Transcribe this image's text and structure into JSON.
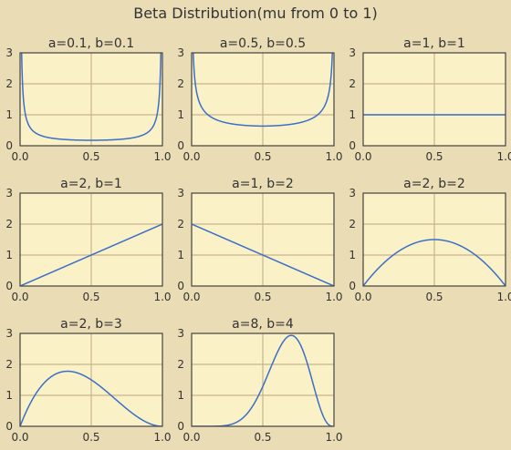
{
  "title": "Beta Distribution(mu from 0 to 1)",
  "colors": {
    "figure_bg": "#eadcb4",
    "axes_bg": "#fbf1c7",
    "grid": "#c9b48c",
    "spine": "#4a4a4a",
    "line": "#3a6fc9",
    "text": "#333333"
  },
  "chart_data": [
    {
      "type": "line",
      "title": "a=0.1, b=0.1",
      "a": 0.1,
      "b": 0.1,
      "xlim": [
        0,
        1
      ],
      "ylim": [
        0,
        3
      ],
      "xticks": [
        "0.0",
        "0.5",
        "1.0"
      ],
      "yticks": [
        "0",
        "1",
        "2",
        "3"
      ],
      "grid": true,
      "x": [
        0,
        0.01,
        0.02,
        0.05,
        0.1,
        0.2,
        0.3,
        0.4,
        0.5,
        0.6,
        0.7,
        0.8,
        0.9,
        0.95,
        0.98,
        0.99,
        1
      ],
      "y": [
        null,
        3.0,
        1.77,
        0.87,
        0.51,
        0.29,
        0.22,
        0.18,
        0.17,
        0.18,
        0.22,
        0.29,
        0.51,
        0.87,
        1.77,
        3.0,
        null
      ]
    },
    {
      "type": "line",
      "title": "a=0.5, b=0.5",
      "a": 0.5,
      "b": 0.5,
      "xlim": [
        0,
        1
      ],
      "ylim": [
        0,
        3
      ],
      "xticks": [
        "0.0",
        "0.5",
        "1.0"
      ],
      "yticks": [
        "0",
        "1",
        "2",
        "3"
      ],
      "grid": true,
      "x": [
        0,
        0.01,
        0.02,
        0.05,
        0.1,
        0.2,
        0.3,
        0.4,
        0.5,
        0.6,
        0.7,
        0.8,
        0.9,
        0.95,
        0.98,
        0.99,
        1
      ],
      "y": [
        null,
        3.2,
        2.27,
        1.46,
        1.06,
        0.8,
        0.69,
        0.65,
        0.64,
        0.65,
        0.69,
        0.8,
        1.06,
        1.46,
        2.27,
        3.2,
        null
      ]
    },
    {
      "type": "line",
      "title": "a=1, b=1",
      "a": 1,
      "b": 1,
      "xlim": [
        0,
        1
      ],
      "ylim": [
        0,
        3
      ],
      "xticks": [
        "0.0",
        "0.5",
        "1.0"
      ],
      "yticks": [
        "0",
        "1",
        "2",
        "3"
      ],
      "grid": true,
      "x": [
        0,
        0.5,
        1
      ],
      "y": [
        1,
        1,
        1
      ]
    },
    {
      "type": "line",
      "title": "a=2, b=1",
      "a": 2,
      "b": 1,
      "xlim": [
        0,
        1
      ],
      "ylim": [
        0,
        3
      ],
      "xticks": [
        "0.0",
        "0.5",
        "1.0"
      ],
      "yticks": [
        "0",
        "1",
        "2",
        "3"
      ],
      "grid": true,
      "x": [
        0,
        0.5,
        1
      ],
      "y": [
        0,
        1,
        2
      ]
    },
    {
      "type": "line",
      "title": "a=1, b=2",
      "a": 1,
      "b": 2,
      "xlim": [
        0,
        1
      ],
      "ylim": [
        0,
        3
      ],
      "xticks": [
        "0.0",
        "0.5",
        "1.0"
      ],
      "yticks": [
        "0",
        "1",
        "2",
        "3"
      ],
      "grid": true,
      "x": [
        0,
        0.5,
        1
      ],
      "y": [
        2,
        1,
        0
      ]
    },
    {
      "type": "line",
      "title": "a=2, b=2",
      "a": 2,
      "b": 2,
      "xlim": [
        0,
        1
      ],
      "ylim": [
        0,
        3
      ],
      "xticks": [
        "0.0",
        "0.5",
        "1.0"
      ],
      "yticks": [
        "0",
        "1",
        "2",
        "3"
      ],
      "grid": true,
      "x": [
        0,
        0.1,
        0.2,
        0.3,
        0.4,
        0.5,
        0.6,
        0.7,
        0.8,
        0.9,
        1
      ],
      "y": [
        0,
        0.54,
        0.96,
        1.26,
        1.44,
        1.5,
        1.44,
        1.26,
        0.96,
        0.54,
        0
      ]
    },
    {
      "type": "line",
      "title": "a=2, b=3",
      "a": 2,
      "b": 3,
      "xlim": [
        0,
        1
      ],
      "ylim": [
        0,
        3
      ],
      "xticks": [
        "0.0",
        "0.5",
        "1.0"
      ],
      "yticks": [
        "0",
        "1",
        "2",
        "3"
      ],
      "grid": true,
      "x": [
        0,
        0.1,
        0.2,
        0.3,
        0.333,
        0.4,
        0.5,
        0.6,
        0.7,
        0.8,
        0.9,
        1
      ],
      "y": [
        0,
        0.97,
        1.54,
        1.76,
        1.78,
        1.73,
        1.5,
        1.15,
        0.76,
        0.38,
        0.11,
        0
      ]
    },
    {
      "type": "line",
      "title": "a=8, b=4",
      "a": 8,
      "b": 4,
      "xlim": [
        0,
        1
      ],
      "ylim": [
        0,
        3
      ],
      "xticks": [
        "0.0",
        "0.5",
        "1.0"
      ],
      "yticks": [
        "0",
        "1",
        "2",
        "3"
      ],
      "grid": true,
      "x": [
        0,
        0.3,
        0.4,
        0.5,
        0.6,
        0.7,
        0.8,
        0.9,
        1
      ],
      "y": [
        0,
        0.09,
        0.48,
        1.29,
        2.36,
        2.97,
        2.26,
        0.63,
        0
      ]
    }
  ]
}
